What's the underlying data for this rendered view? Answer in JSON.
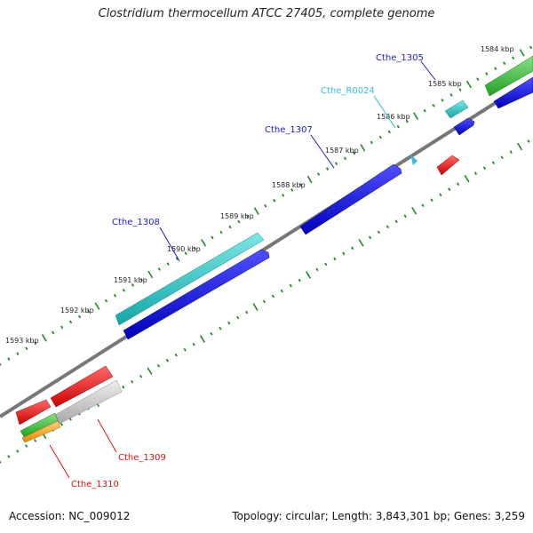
{
  "title": "Clostridium thermocellum ATCC 27405, complete genome",
  "footer": {
    "accession": "Accession: NC_009012",
    "topology": "Topology: circular; Length: 3,843,301 bp; Genes: 3,259"
  },
  "kbp_labels": [
    "1584 kbp",
    "1585 kbp",
    "1586 kbp",
    "1587 kbp",
    "1588 kbp",
    "1589 kbp",
    "1590 kbp",
    "1591 kbp",
    "1592 kbp",
    "1593 kbp"
  ],
  "gene_labels": [
    {
      "id": "cthe-1305",
      "text": "Cthe_1305",
      "color": "#1a1acc"
    },
    {
      "id": "cthe-r0024",
      "text": "Cthe_R0024",
      "color": "#33bbdd"
    },
    {
      "id": "cthe-1307",
      "text": "Cthe_1307",
      "color": "#1a1acc"
    },
    {
      "id": "cthe-1308",
      "text": "Cthe_1308",
      "color": "#1a1acc"
    },
    {
      "id": "cthe-1309",
      "text": "Cthe_1309",
      "color": "#dd1111"
    },
    {
      "id": "cthe-1310",
      "text": "Cthe_1310",
      "color": "#dd1111"
    }
  ],
  "colors": {
    "blue": "#1010dd",
    "cyan": "#22c4c4",
    "green": "#33bb33",
    "red": "#ee1111",
    "grey": "#bbbbbb",
    "orange": "#f0a020",
    "backbone": "#777777",
    "tick": "#228822"
  }
}
